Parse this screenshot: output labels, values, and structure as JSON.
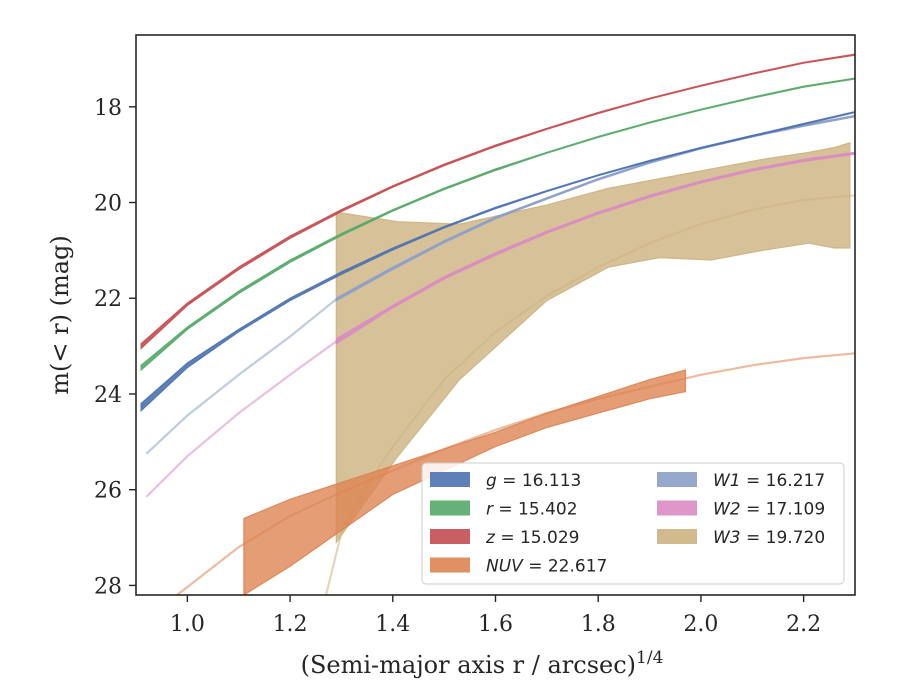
{
  "chart_data": {
    "type": "area",
    "xlabel": "(Semi-major axis r / arcsec)",
    "xlabel_sup": "1/4",
    "ylabel": "m(< r) (mag)",
    "xlim": [
      0.9,
      2.3
    ],
    "ylim": [
      28.2,
      16.5
    ],
    "y_inverted": true,
    "x_ticks": [
      1.0,
      1.2,
      1.4,
      1.6,
      1.8,
      2.0,
      2.2
    ],
    "x_tick_labels": [
      "1.0",
      "1.2",
      "1.4",
      "1.6",
      "1.8",
      "2.0",
      "2.2"
    ],
    "y_ticks": [
      18,
      20,
      22,
      24,
      26,
      28
    ],
    "y_tick_labels": [
      "18",
      "20",
      "22",
      "24",
      "26",
      "28"
    ],
    "grid": false,
    "legend_position": "lower-right",
    "series": [
      {
        "name": "g = 16.113",
        "color": "#4c72b0",
        "band_x": [
          0.91,
          1.0,
          1.1,
          1.2,
          1.3,
          1.4,
          1.5,
          1.6,
          1.7,
          1.8,
          1.9,
          2.0,
          2.1,
          2.2,
          2.3
        ],
        "band_upper": [
          24.2,
          23.35,
          22.65,
          22.0,
          21.45,
          20.95,
          20.5,
          20.1,
          19.75,
          19.42,
          19.12,
          18.85,
          18.6,
          18.35,
          18.1
        ],
        "band_lower": [
          24.35,
          23.45,
          22.7,
          22.05,
          21.5,
          20.99,
          20.53,
          20.13,
          19.77,
          19.44,
          19.14,
          18.87,
          18.62,
          18.37,
          18.12
        ],
        "model_x": [],
        "model_y": []
      },
      {
        "name": "r = 15.402",
        "color": "#55a868",
        "band_x": [
          0.91,
          1.0,
          1.1,
          1.2,
          1.3,
          1.4,
          1.5,
          1.6,
          1.7,
          1.8,
          1.9,
          2.0,
          2.1,
          2.2,
          2.3
        ],
        "band_upper": [
          23.4,
          22.6,
          21.85,
          21.2,
          20.65,
          20.15,
          19.7,
          19.3,
          18.95,
          18.62,
          18.32,
          18.05,
          17.8,
          17.57,
          17.4
        ],
        "band_lower": [
          23.5,
          22.65,
          21.9,
          21.25,
          20.69,
          20.18,
          19.73,
          19.33,
          18.97,
          18.64,
          18.34,
          18.07,
          17.82,
          17.59,
          17.42
        ],
        "model_x": [],
        "model_y": []
      },
      {
        "name": "z = 15.029",
        "color": "#c44e52",
        "band_x": [
          0.91,
          1.0,
          1.1,
          1.2,
          1.3,
          1.4,
          1.5,
          1.6,
          1.7,
          1.8,
          1.9,
          2.0,
          2.1,
          2.2,
          2.3
        ],
        "band_upper": [
          22.95,
          22.1,
          21.35,
          20.7,
          20.15,
          19.65,
          19.2,
          18.8,
          18.45,
          18.12,
          17.82,
          17.55,
          17.3,
          17.07,
          16.9
        ],
        "band_lower": [
          23.05,
          22.15,
          21.4,
          20.75,
          20.19,
          19.68,
          19.23,
          18.83,
          18.47,
          18.14,
          17.84,
          17.57,
          17.32,
          17.09,
          16.92
        ],
        "model_x": [],
        "model_y": []
      },
      {
        "name": "NUV = 22.617",
        "color": "#dd8452",
        "band_x": [
          1.11,
          1.2,
          1.3,
          1.4,
          1.5,
          1.6,
          1.7,
          1.8,
          1.9,
          1.97
        ],
        "band_upper": [
          26.6,
          26.2,
          25.85,
          25.5,
          25.15,
          24.8,
          24.4,
          24.05,
          23.7,
          23.5
        ],
        "band_lower": [
          28.2,
          27.6,
          26.85,
          26.1,
          25.6,
          25.1,
          24.7,
          24.4,
          24.1,
          23.95
        ],
        "model_x": [
          0.98,
          1.1,
          1.2,
          1.3,
          1.4,
          1.5,
          1.6,
          1.7,
          1.8,
          1.9,
          2.0,
          2.1,
          2.2,
          2.3
        ],
        "model_y": [
          28.2,
          27.2,
          26.55,
          26.05,
          25.6,
          25.15,
          24.75,
          24.4,
          24.1,
          23.85,
          23.6,
          23.4,
          23.25,
          23.15
        ]
      },
      {
        "name": "W1 = 16.217",
        "color": "#8c9fc8",
        "band_x": [
          1.29,
          1.4,
          1.5,
          1.6,
          1.7,
          1.8,
          1.9,
          2.0,
          2.1,
          2.2,
          2.3
        ],
        "band_upper": [
          22.0,
          21.35,
          20.8,
          20.3,
          19.9,
          19.5,
          19.15,
          18.85,
          18.6,
          18.38,
          18.18
        ],
        "band_lower": [
          22.05,
          21.4,
          20.84,
          20.34,
          19.93,
          19.53,
          19.18,
          18.88,
          18.63,
          18.41,
          18.21
        ],
        "model_x": [
          0.92,
          1.0,
          1.1,
          1.2,
          1.29
        ],
        "model_y": [
          25.25,
          24.45,
          23.6,
          22.8,
          22.02
        ]
      },
      {
        "name": "W2 = 17.109",
        "color": "#da8bc3",
        "band_x": [
          1.29,
          1.4,
          1.5,
          1.6,
          1.7,
          1.8,
          1.9,
          2.0,
          2.1,
          2.2,
          2.3
        ],
        "band_upper": [
          22.85,
          22.15,
          21.55,
          21.05,
          20.6,
          20.2,
          19.85,
          19.55,
          19.3,
          19.1,
          18.95
        ],
        "band_lower": [
          22.95,
          22.2,
          21.6,
          21.1,
          20.64,
          20.24,
          19.89,
          19.59,
          19.34,
          19.14,
          18.99
        ],
        "model_x": [
          0.92,
          1.0,
          1.1,
          1.2,
          1.29
        ],
        "model_y": [
          26.15,
          25.3,
          24.4,
          23.6,
          22.9
        ]
      },
      {
        "name": "W3 = 19.720",
        "color": "#ccb27f",
        "band_x": [
          1.29,
          1.41,
          1.53,
          1.7,
          1.82,
          1.92,
          2.02,
          2.12,
          2.21,
          2.26,
          2.29
        ],
        "band_upper": [
          20.2,
          20.4,
          20.45,
          20.05,
          19.7,
          19.5,
          19.3,
          19.1,
          18.95,
          18.85,
          18.75
        ],
        "band_lower": [
          27.1,
          25.3,
          23.7,
          22.05,
          21.35,
          21.15,
          21.2,
          21.0,
          20.85,
          20.95,
          20.95
        ],
        "model_x": [
          1.27,
          1.3,
          1.35,
          1.4,
          1.5,
          1.6,
          1.7,
          1.8,
          1.9,
          2.0,
          2.1,
          2.2,
          2.3
        ],
        "model_y": [
          28.2,
          26.9,
          25.9,
          25.1,
          23.7,
          22.7,
          21.95,
          21.35,
          20.85,
          20.45,
          20.15,
          19.95,
          19.85
        ]
      }
    ],
    "legend_columns": [
      [
        "g = 16.113",
        "r = 15.402",
        "z = 15.029",
        "NUV = 22.617"
      ],
      [
        "W1 = 16.217",
        "W2 = 17.109",
        "W3 = 19.720"
      ]
    ]
  }
}
